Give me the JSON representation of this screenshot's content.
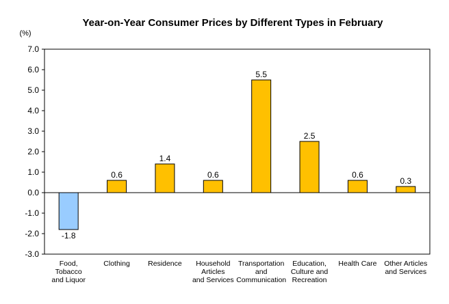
{
  "chart_data": {
    "type": "bar",
    "title": "Year-on-Year Consumer Prices by Different Types in February",
    "unit_label": "(%)",
    "categories": [
      "Food,\nTobacco\nand Liquor",
      "Clothing",
      "Residence",
      "Household\nArticles\nand Services",
      "Transportation\nand\nCommunication",
      "Education,\nCulture and\nRecreation",
      "Health Care",
      "Other Articles\nand Services"
    ],
    "values": [
      -1.8,
      0.6,
      1.4,
      0.6,
      5.5,
      2.5,
      0.6,
      0.3
    ],
    "data_labels": [
      "-1.8",
      "0.6",
      "1.4",
      "0.6",
      "5.5",
      "2.5",
      "0.6",
      "0.3"
    ],
    "yticks": [
      "7.0",
      "6.0",
      "5.0",
      "4.0",
      "3.0",
      "2.0",
      "1.0",
      "0.0",
      "-1.0",
      "-2.0",
      "-3.0"
    ],
    "ylim": [
      -3,
      7
    ],
    "xlabel": "",
    "ylabel": "",
    "grid": false,
    "legend": "none",
    "colors": {
      "positive": "#FFC000",
      "negative": "#99CCFF",
      "bar_stroke": "#000000",
      "axis": "#000000"
    }
  }
}
